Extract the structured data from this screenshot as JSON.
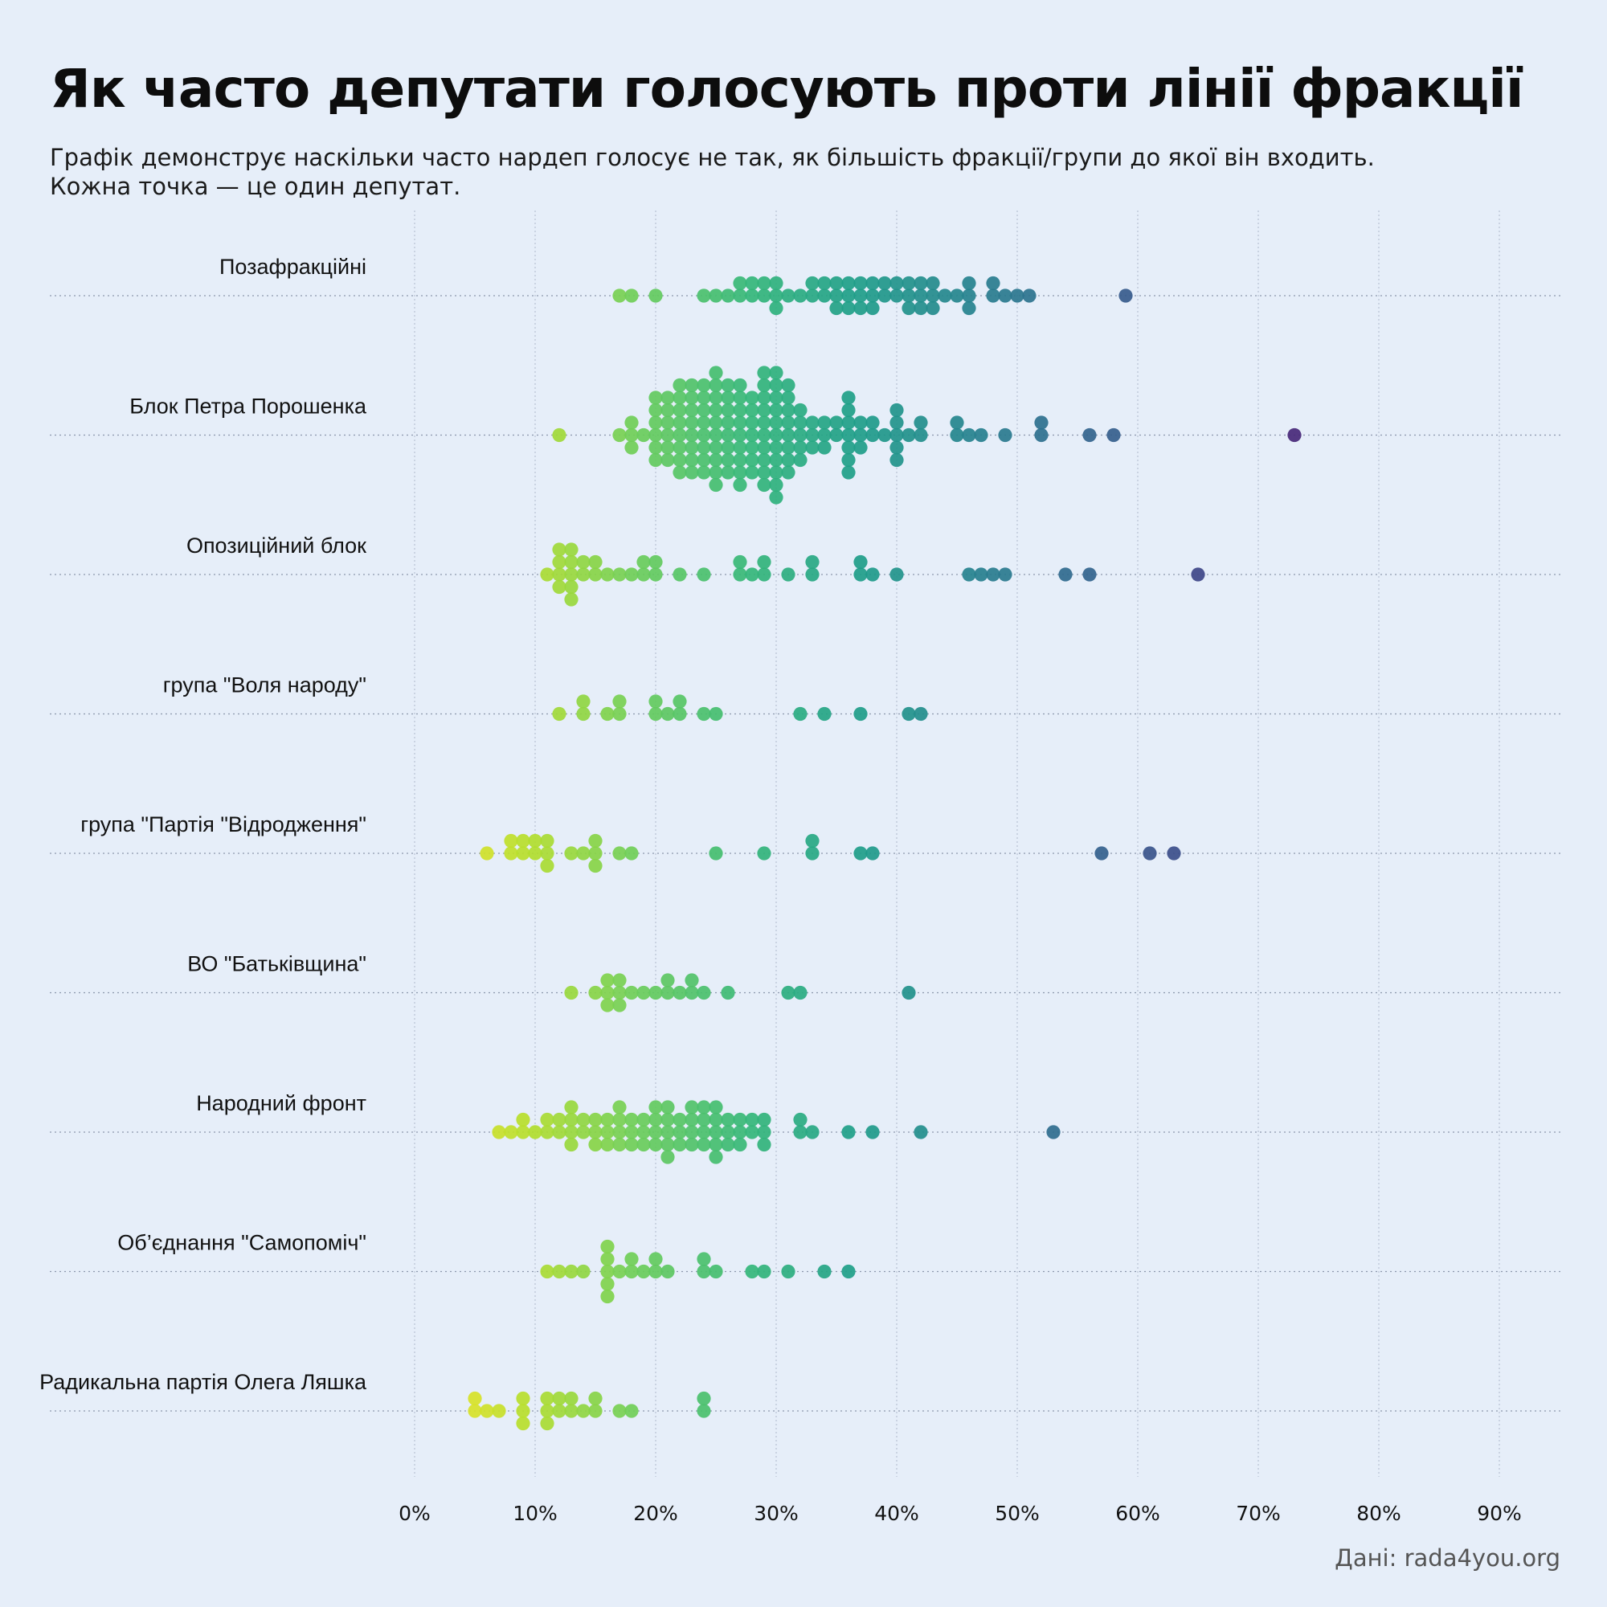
{
  "title": "Як часто депутати голосують проти лінії фракції",
  "subtitle": {
    "line1": "Графік демонструє наскільки часто нардеп голосує не так, як більшість фракції/групи до якої він входить.",
    "line2": "Кожна точка — це один депутат."
  },
  "source": "Дані: rada4you.org",
  "colors": {
    "background": "#e6eef9",
    "palette": "viridis (yellow at 0% → purple at ~75%)"
  },
  "chart_data": {
    "type": "scatter",
    "subtype": "beeswarm",
    "xlabel": "",
    "ylabel": "",
    "xlim": [
      0,
      95
    ],
    "x_ticks": [
      0,
      10,
      20,
      30,
      40,
      50,
      60,
      70,
      80,
      90
    ],
    "x_tick_labels": [
      "0%",
      "10%",
      "20%",
      "30%",
      "40%",
      "50%",
      "60%",
      "70%",
      "80%",
      "90%"
    ],
    "groups": [
      {
        "name": "Позафракційні",
        "values": [
          17,
          18,
          20,
          24,
          25,
          26,
          27,
          27,
          28,
          28,
          29,
          29,
          30,
          30,
          30,
          31,
          32,
          33,
          33,
          34,
          34,
          35,
          35,
          35,
          36,
          36,
          36,
          37,
          37,
          37,
          38,
          38,
          38,
          39,
          39,
          40,
          40,
          41,
          41,
          41,
          42,
          42,
          42,
          43,
          43,
          43,
          44,
          45,
          46,
          46,
          46,
          48,
          48,
          49,
          50,
          51,
          59
        ]
      },
      {
        "name": "Блок Петра Порошенка",
        "values": [
          12,
          17,
          18,
          18,
          18,
          19,
          20,
          20,
          20,
          20,
          20,
          20,
          21,
          21,
          21,
          21,
          21,
          21,
          22,
          22,
          22,
          22,
          22,
          22,
          22,
          22,
          23,
          23,
          23,
          23,
          23,
          23,
          23,
          23,
          24,
          24,
          24,
          24,
          24,
          24,
          24,
          24,
          25,
          25,
          25,
          25,
          25,
          25,
          25,
          25,
          25,
          25,
          26,
          26,
          26,
          26,
          26,
          26,
          26,
          26,
          27,
          27,
          27,
          27,
          27,
          27,
          27,
          27,
          27,
          28,
          28,
          28,
          28,
          28,
          28,
          28,
          29,
          29,
          29,
          29,
          29,
          29,
          29,
          29,
          29,
          29,
          30,
          30,
          30,
          30,
          30,
          30,
          30,
          30,
          30,
          30,
          30,
          31,
          31,
          31,
          31,
          31,
          31,
          31,
          31,
          32,
          32,
          32,
          32,
          32,
          33,
          33,
          33,
          34,
          34,
          34,
          35,
          35,
          36,
          36,
          36,
          36,
          36,
          36,
          36,
          37,
          37,
          37,
          38,
          38,
          39,
          40,
          40,
          40,
          40,
          40,
          41,
          42,
          42,
          45,
          45,
          46,
          47,
          49,
          52,
          52,
          56,
          58,
          73
        ]
      },
      {
        "name": "Опозиційний блок",
        "values": [
          11,
          12,
          12,
          12,
          12,
          13,
          13,
          13,
          13,
          13,
          14,
          14,
          15,
          15,
          16,
          17,
          18,
          19,
          19,
          20,
          20,
          22,
          24,
          27,
          27,
          28,
          29,
          29,
          31,
          33,
          33,
          37,
          37,
          38,
          40,
          46,
          47,
          48,
          49,
          54,
          56,
          65
        ]
      },
      {
        "name": "група \"Воля народу\"",
        "values": [
          12,
          14,
          14,
          16,
          17,
          17,
          20,
          20,
          21,
          22,
          22,
          24,
          25,
          32,
          34,
          37,
          41,
          42
        ]
      },
      {
        "name": "група \"Партія \"Відродження\"",
        "values": [
          6,
          8,
          8,
          9,
          9,
          10,
          10,
          11,
          11,
          11,
          13,
          14,
          15,
          15,
          15,
          17,
          18,
          25,
          29,
          33,
          33,
          37,
          38,
          57,
          61,
          63
        ]
      },
      {
        "name": "ВО \"Батьківщина\"",
        "values": [
          13,
          15,
          16,
          16,
          16,
          17,
          17,
          17,
          18,
          19,
          20,
          21,
          21,
          22,
          23,
          23,
          24,
          26,
          31,
          32,
          41
        ]
      },
      {
        "name": "Народний фронт",
        "values": [
          7,
          8,
          9,
          9,
          10,
          11,
          11,
          12,
          12,
          13,
          13,
          13,
          13,
          14,
          14,
          15,
          15,
          15,
          16,
          16,
          16,
          17,
          17,
          17,
          17,
          18,
          18,
          18,
          19,
          19,
          19,
          20,
          20,
          20,
          20,
          21,
          21,
          21,
          21,
          21,
          22,
          22,
          22,
          23,
          23,
          23,
          23,
          24,
          24,
          24,
          24,
          25,
          25,
          25,
          25,
          25,
          26,
          26,
          26,
          27,
          27,
          27,
          28,
          28,
          29,
          29,
          29,
          32,
          32,
          33,
          36,
          38,
          42,
          53
        ]
      },
      {
        "name": "Об’єднання \"Самопоміч\"",
        "values": [
          11,
          12,
          13,
          14,
          16,
          16,
          16,
          16,
          16,
          17,
          18,
          18,
          19,
          20,
          20,
          21,
          24,
          24,
          25,
          28,
          29,
          31,
          34,
          36
        ]
      },
      {
        "name": "Радикальна партія Олега Ляшка",
        "values": [
          5,
          5,
          6,
          7,
          9,
          9,
          9,
          11,
          11,
          11,
          12,
          12,
          13,
          13,
          14,
          15,
          15,
          17,
          18,
          24,
          24
        ]
      }
    ]
  }
}
